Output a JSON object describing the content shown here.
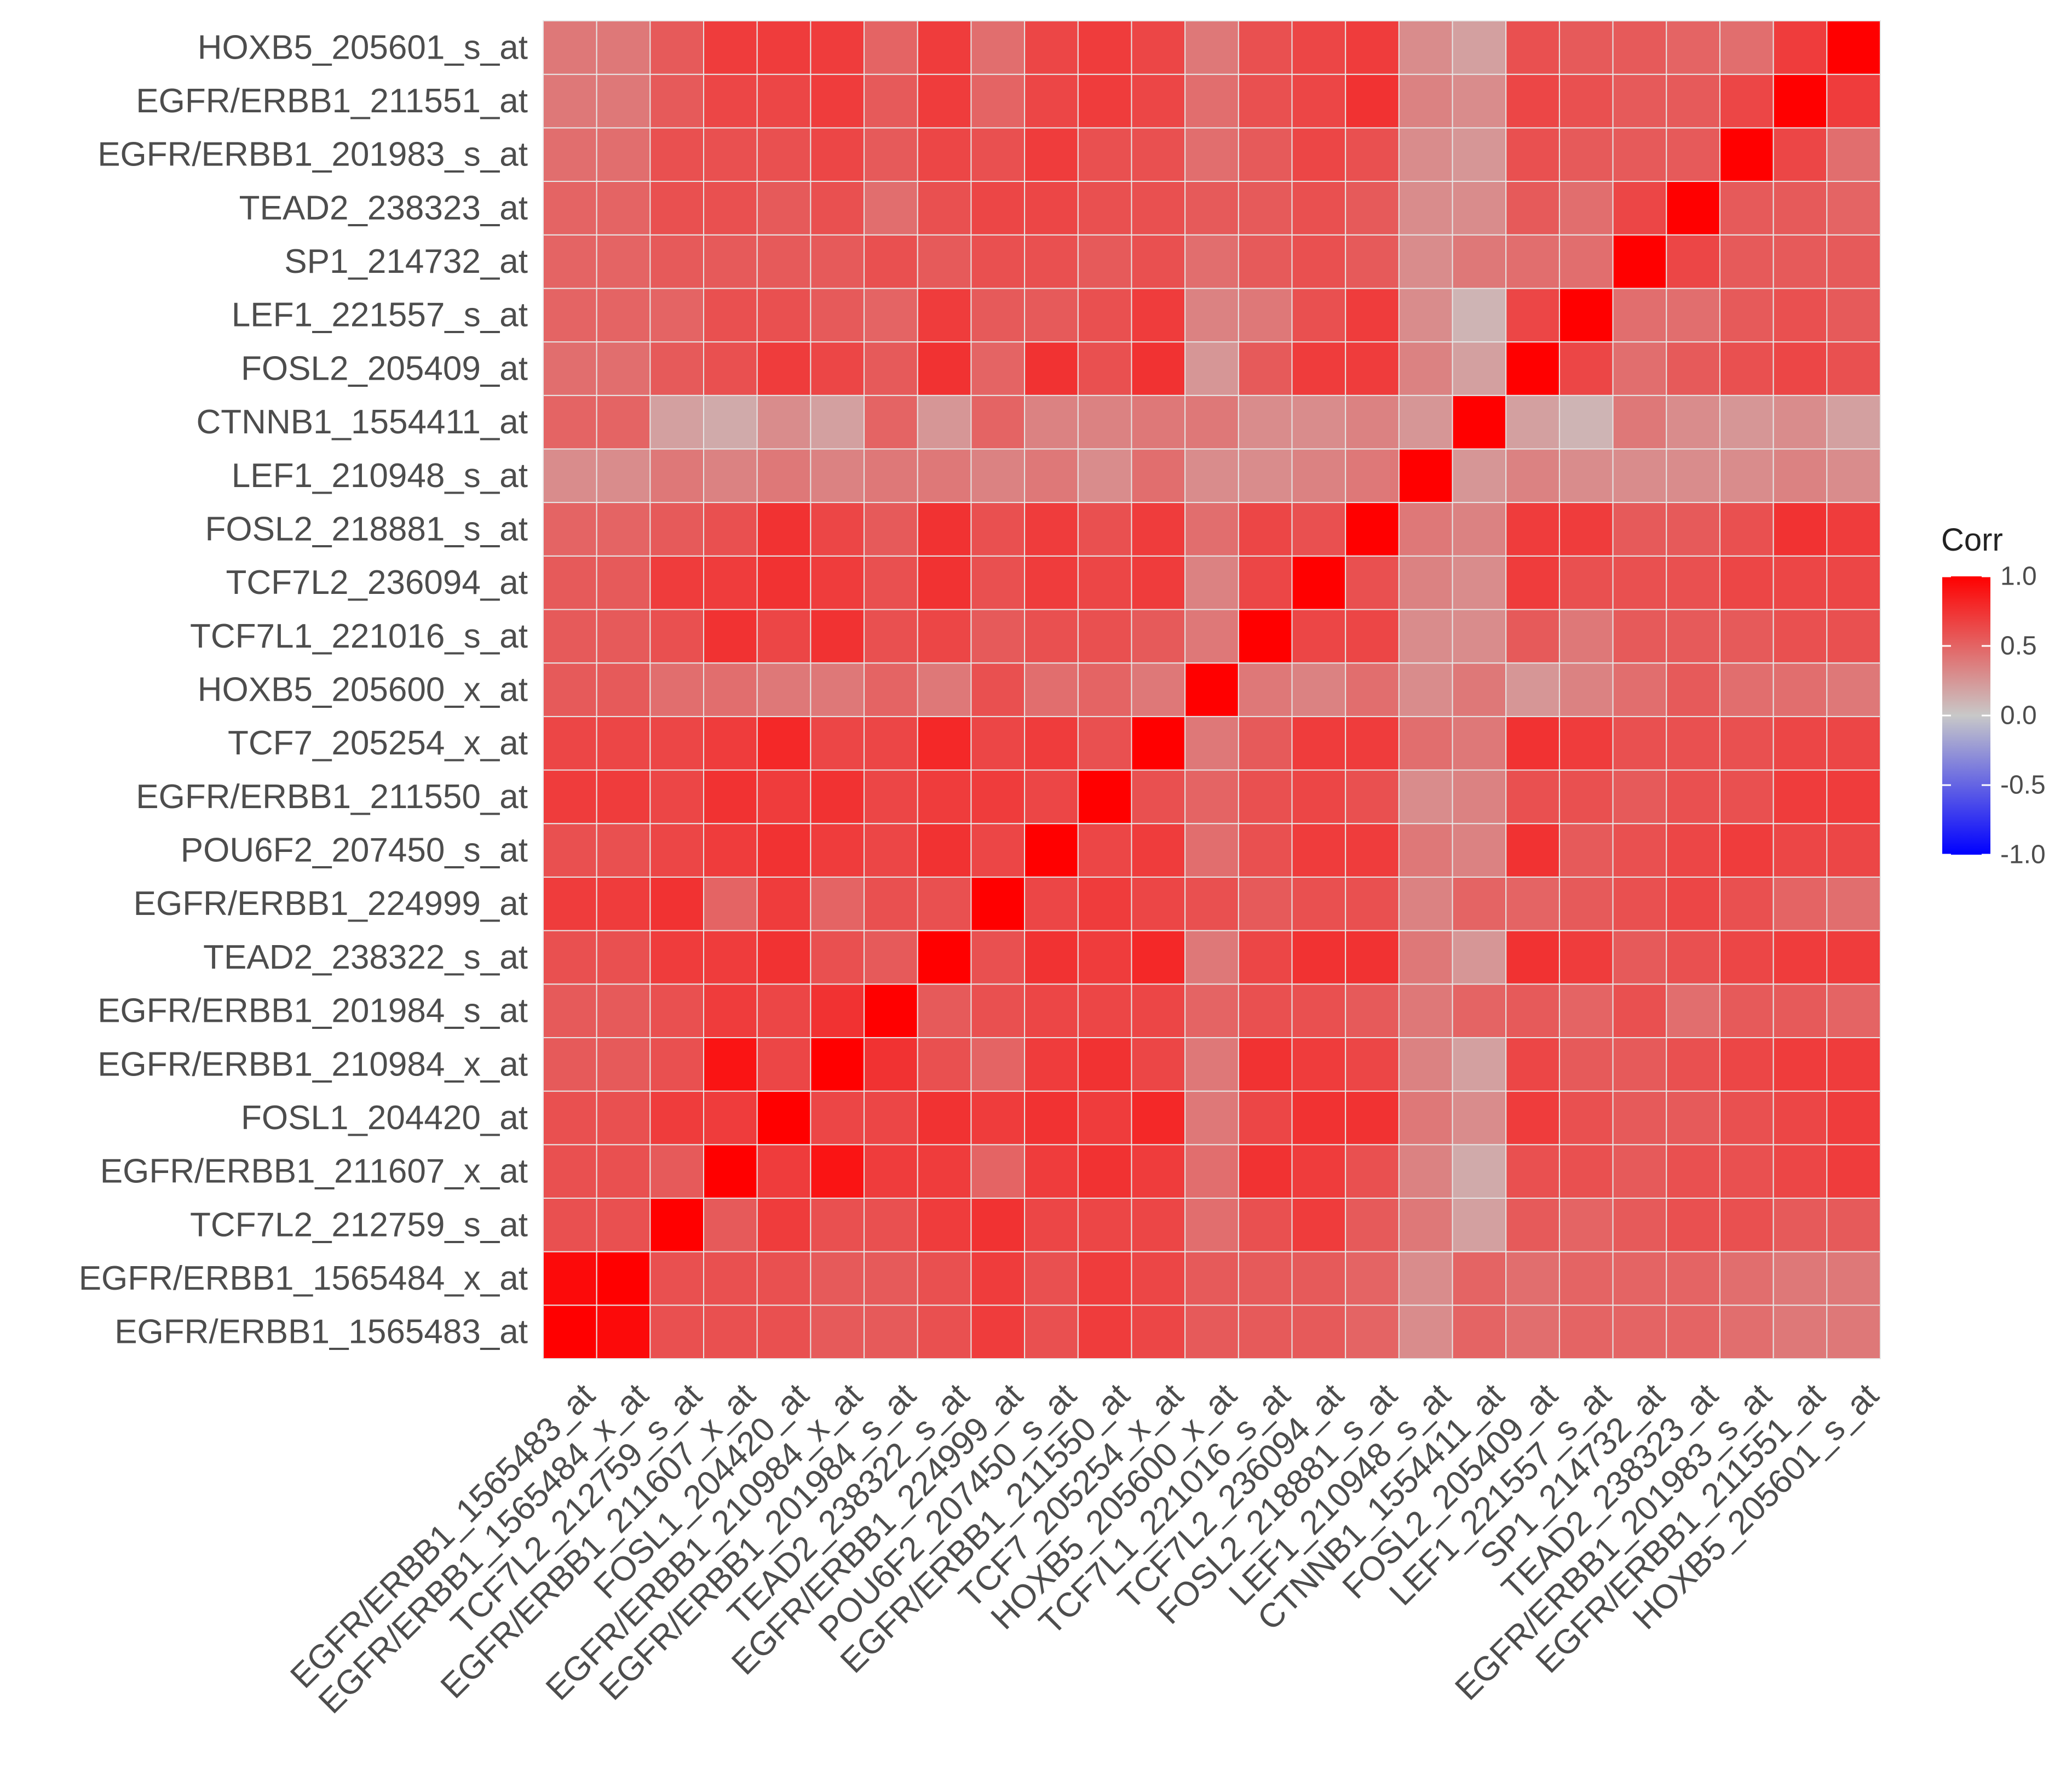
{
  "chart_data": {
    "type": "heatmap",
    "title": "",
    "xlabel": "",
    "ylabel": "",
    "labels": [
      "EGFR/ERBB1_1565483_at",
      "EGFR/ERBB1_1565484_x_at",
      "TCF7L2_212759_s_at",
      "EGFR/ERBB1_211607_x_at",
      "FOSL1_204420_at",
      "EGFR/ERBB1_210984_x_at",
      "EGFR/ERBB1_201984_s_at",
      "TEAD2_238322_s_at",
      "EGFR/ERBB1_224999_at",
      "POU6F2_207450_s_at",
      "EGFR/ERBB1_211550_at",
      "TCF7_205254_x_at",
      "HOXB5_205600_x_at",
      "TCF7L1_221016_s_at",
      "TCF7L2_236094_at",
      "FOSL2_218881_s_at",
      "LEF1_210948_s_at",
      "CTNNB1_1554411_at",
      "FOSL2_205409_at",
      "LEF1_221557_s_at",
      "SP1_214732_at",
      "TEAD2_238323_at",
      "EGFR/ERBB1_201983_s_at",
      "EGFR/ERBB1_211551_at",
      "HOXB5_205601_s_at"
    ],
    "matrix": [
      [
        1.0,
        0.95,
        0.6,
        0.6,
        0.6,
        0.55,
        0.55,
        0.6,
        0.7,
        0.6,
        0.7,
        0.65,
        0.55,
        0.55,
        0.55,
        0.5,
        0.3,
        0.5,
        0.45,
        0.5,
        0.5,
        0.5,
        0.45,
        0.4,
        0.4
      ],
      [
        0.95,
        1.0,
        0.6,
        0.6,
        0.6,
        0.55,
        0.55,
        0.6,
        0.7,
        0.6,
        0.7,
        0.65,
        0.55,
        0.55,
        0.55,
        0.5,
        0.3,
        0.5,
        0.45,
        0.5,
        0.5,
        0.5,
        0.45,
        0.4,
        0.4
      ],
      [
        0.6,
        0.6,
        1.0,
        0.55,
        0.7,
        0.6,
        0.6,
        0.7,
        0.75,
        0.65,
        0.65,
        0.65,
        0.45,
        0.6,
        0.7,
        0.55,
        0.4,
        0.2,
        0.55,
        0.5,
        0.55,
        0.6,
        0.6,
        0.55,
        0.55
      ],
      [
        0.6,
        0.6,
        0.55,
        1.0,
        0.7,
        0.9,
        0.7,
        0.7,
        0.5,
        0.7,
        0.75,
        0.7,
        0.45,
        0.75,
        0.7,
        0.6,
        0.35,
        0.15,
        0.6,
        0.6,
        0.55,
        0.6,
        0.6,
        0.65,
        0.7
      ],
      [
        0.6,
        0.6,
        0.7,
        0.7,
        1.0,
        0.65,
        0.65,
        0.75,
        0.7,
        0.75,
        0.7,
        0.8,
        0.4,
        0.65,
        0.75,
        0.75,
        0.4,
        0.3,
        0.7,
        0.6,
        0.55,
        0.55,
        0.6,
        0.65,
        0.7
      ],
      [
        0.55,
        0.55,
        0.6,
        0.9,
        0.65,
        1.0,
        0.75,
        0.6,
        0.5,
        0.7,
        0.75,
        0.65,
        0.4,
        0.75,
        0.7,
        0.65,
        0.35,
        0.2,
        0.65,
        0.55,
        0.55,
        0.6,
        0.65,
        0.7,
        0.7
      ],
      [
        0.55,
        0.55,
        0.6,
        0.7,
        0.65,
        0.75,
        1.0,
        0.55,
        0.6,
        0.65,
        0.65,
        0.65,
        0.5,
        0.6,
        0.6,
        0.55,
        0.4,
        0.5,
        0.55,
        0.5,
        0.6,
        0.45,
        0.55,
        0.55,
        0.5
      ],
      [
        0.6,
        0.6,
        0.7,
        0.7,
        0.75,
        0.6,
        0.55,
        1.0,
        0.6,
        0.75,
        0.7,
        0.8,
        0.4,
        0.65,
        0.75,
        0.75,
        0.4,
        0.25,
        0.75,
        0.7,
        0.55,
        0.6,
        0.65,
        0.7,
        0.7
      ],
      [
        0.7,
        0.7,
        0.75,
        0.5,
        0.7,
        0.5,
        0.6,
        0.6,
        1.0,
        0.65,
        0.7,
        0.65,
        0.6,
        0.55,
        0.6,
        0.6,
        0.35,
        0.5,
        0.5,
        0.55,
        0.6,
        0.65,
        0.6,
        0.5,
        0.45
      ],
      [
        0.6,
        0.6,
        0.65,
        0.7,
        0.75,
        0.7,
        0.65,
        0.75,
        0.65,
        1.0,
        0.65,
        0.7,
        0.45,
        0.6,
        0.7,
        0.7,
        0.4,
        0.35,
        0.75,
        0.55,
        0.6,
        0.65,
        0.7,
        0.65,
        0.65
      ],
      [
        0.7,
        0.7,
        0.65,
        0.75,
        0.7,
        0.75,
        0.65,
        0.7,
        0.7,
        0.65,
        1.0,
        0.6,
        0.5,
        0.6,
        0.65,
        0.6,
        0.3,
        0.35,
        0.6,
        0.6,
        0.55,
        0.6,
        0.6,
        0.7,
        0.7
      ],
      [
        0.65,
        0.65,
        0.65,
        0.7,
        0.8,
        0.65,
        0.65,
        0.8,
        0.65,
        0.7,
        0.6,
        1.0,
        0.4,
        0.55,
        0.7,
        0.7,
        0.45,
        0.4,
        0.75,
        0.7,
        0.6,
        0.6,
        0.6,
        0.65,
        0.65
      ],
      [
        0.55,
        0.55,
        0.45,
        0.45,
        0.4,
        0.4,
        0.5,
        0.4,
        0.6,
        0.45,
        0.5,
        0.4,
        1.0,
        0.4,
        0.35,
        0.45,
        0.3,
        0.4,
        0.25,
        0.35,
        0.45,
        0.55,
        0.45,
        0.45,
        0.4
      ],
      [
        0.55,
        0.55,
        0.6,
        0.75,
        0.65,
        0.75,
        0.6,
        0.65,
        0.55,
        0.6,
        0.6,
        0.55,
        0.4,
        1.0,
        0.65,
        0.65,
        0.3,
        0.3,
        0.55,
        0.4,
        0.55,
        0.55,
        0.55,
        0.6,
        0.6
      ],
      [
        0.55,
        0.55,
        0.7,
        0.7,
        0.75,
        0.7,
        0.6,
        0.75,
        0.6,
        0.7,
        0.65,
        0.7,
        0.35,
        0.65,
        1.0,
        0.6,
        0.35,
        0.3,
        0.7,
        0.6,
        0.6,
        0.6,
        0.65,
        0.65,
        0.65
      ],
      [
        0.5,
        0.5,
        0.55,
        0.6,
        0.75,
        0.65,
        0.55,
        0.75,
        0.6,
        0.7,
        0.6,
        0.7,
        0.45,
        0.65,
        0.6,
        1.0,
        0.4,
        0.35,
        0.7,
        0.7,
        0.55,
        0.55,
        0.6,
        0.75,
        0.7
      ],
      [
        0.3,
        0.3,
        0.4,
        0.35,
        0.4,
        0.35,
        0.4,
        0.4,
        0.35,
        0.4,
        0.3,
        0.45,
        0.3,
        0.3,
        0.35,
        0.4,
        1.0,
        0.25,
        0.35,
        0.3,
        0.3,
        0.3,
        0.3,
        0.35,
        0.3
      ],
      [
        0.5,
        0.5,
        0.2,
        0.15,
        0.3,
        0.2,
        0.5,
        0.25,
        0.5,
        0.35,
        0.35,
        0.4,
        0.4,
        0.3,
        0.3,
        0.35,
        0.25,
        1.0,
        0.2,
        0.1,
        0.4,
        0.3,
        0.25,
        0.3,
        0.2
      ],
      [
        0.45,
        0.45,
        0.55,
        0.6,
        0.7,
        0.65,
        0.55,
        0.75,
        0.5,
        0.75,
        0.6,
        0.75,
        0.25,
        0.55,
        0.7,
        0.7,
        0.35,
        0.2,
        1.0,
        0.65,
        0.45,
        0.55,
        0.6,
        0.65,
        0.6
      ],
      [
        0.5,
        0.5,
        0.5,
        0.6,
        0.6,
        0.55,
        0.5,
        0.7,
        0.55,
        0.55,
        0.6,
        0.7,
        0.35,
        0.4,
        0.6,
        0.7,
        0.3,
        0.1,
        0.65,
        1.0,
        0.45,
        0.45,
        0.55,
        0.6,
        0.55
      ],
      [
        0.5,
        0.5,
        0.55,
        0.55,
        0.55,
        0.55,
        0.6,
        0.55,
        0.6,
        0.6,
        0.55,
        0.6,
        0.45,
        0.55,
        0.6,
        0.55,
        0.3,
        0.4,
        0.45,
        0.45,
        1.0,
        0.65,
        0.55,
        0.55,
        0.55
      ],
      [
        0.5,
        0.5,
        0.6,
        0.6,
        0.55,
        0.6,
        0.45,
        0.6,
        0.65,
        0.65,
        0.6,
        0.6,
        0.55,
        0.55,
        0.6,
        0.55,
        0.3,
        0.3,
        0.55,
        0.45,
        0.65,
        1.0,
        0.55,
        0.55,
        0.5
      ],
      [
        0.45,
        0.45,
        0.6,
        0.6,
        0.6,
        0.65,
        0.55,
        0.65,
        0.6,
        0.7,
        0.6,
        0.6,
        0.45,
        0.55,
        0.65,
        0.6,
        0.3,
        0.25,
        0.6,
        0.55,
        0.55,
        0.55,
        1.0,
        0.65,
        0.45
      ],
      [
        0.4,
        0.4,
        0.55,
        0.65,
        0.65,
        0.7,
        0.55,
        0.7,
        0.5,
        0.65,
        0.7,
        0.65,
        0.45,
        0.6,
        0.65,
        0.75,
        0.35,
        0.3,
        0.65,
        0.6,
        0.55,
        0.55,
        0.65,
        1.0,
        0.7
      ],
      [
        0.4,
        0.4,
        0.55,
        0.7,
        0.7,
        0.7,
        0.5,
        0.7,
        0.45,
        0.65,
        0.7,
        0.65,
        0.4,
        0.6,
        0.65,
        0.7,
        0.3,
        0.2,
        0.6,
        0.55,
        0.55,
        0.5,
        0.45,
        0.7,
        1.0
      ]
    ],
    "color_scale": {
      "low": "#0000ff",
      "mid": "#c8c8c8",
      "high": "#ff0000",
      "limits": [
        -1.0,
        1.0
      ]
    },
    "legend": {
      "title": "Corr",
      "ticks": [
        "1.0",
        "0.5",
        "0.0",
        "-0.5",
        "-1.0"
      ],
      "placement": "right"
    },
    "panel_background": "#ebebeb",
    "grid": true
  }
}
